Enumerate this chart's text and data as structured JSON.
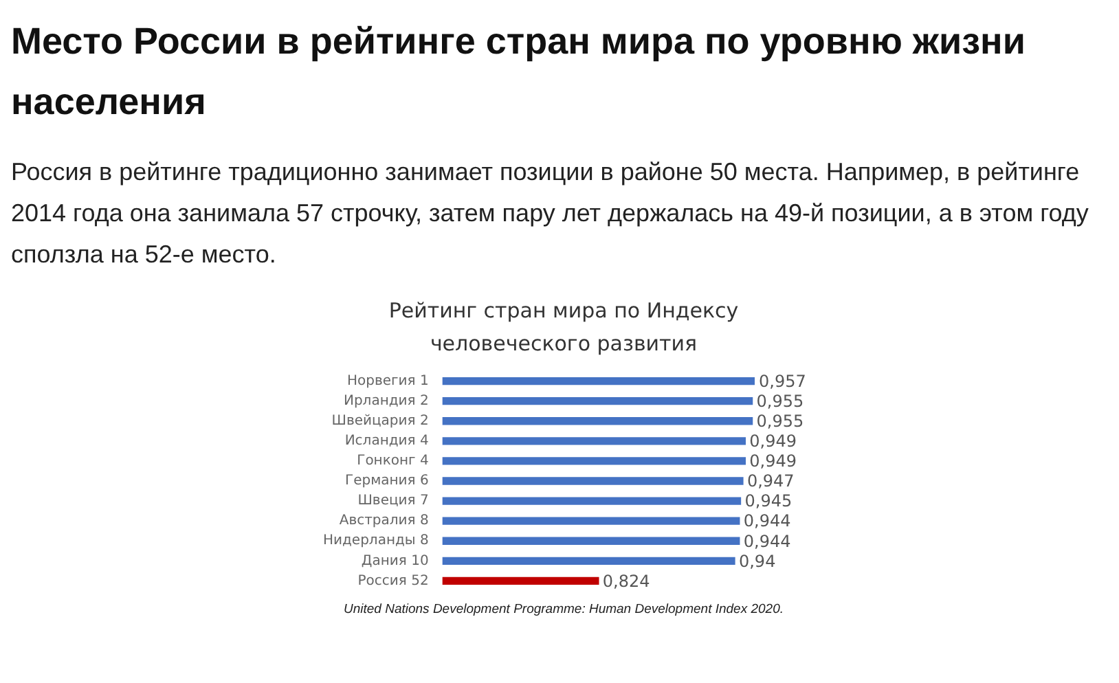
{
  "chart_data": {
    "type": "bar",
    "orientation": "horizontal",
    "title": "Место России в рейтинге стран мира по уровню жизни населения",
    "subtitle": "Россия в рейтинге традиционно занимает позиции в районе 50 места. Например, в рейтинге 2014 года она занимала 57 строчку, затем пару лет держалась на 49-й позиции, а в этом году сползла на 52-е место.",
    "annotations": [
      "Рейтинг стран мира по Индексу человеческого развития",
      "United Nations Development Programme: Human Development Index 2020."
    ],
    "categories": [
      "Норвегия 1",
      "Ирландия 2",
      "Швейцария 2",
      "Исландия 4",
      "Гонконг 4",
      "Германия 6",
      "Швеция 7",
      "Австралия 8",
      "Нидерланды 8",
      "Дания 10",
      "Россия 52"
    ],
    "values": [
      0.957,
      0.955,
      0.955,
      0.949,
      0.949,
      0.947,
      0.945,
      0.944,
      0.944,
      0.94,
      0.824
    ],
    "value_labels": [
      "0,957",
      "0,955",
      "0,955",
      "0,949",
      "0,949",
      "0,947",
      "0,945",
      "0,944",
      "0,944",
      "0,94",
      "0,824"
    ],
    "colors": [
      "#4472c4",
      "#4472c4",
      "#4472c4",
      "#4472c4",
      "#4472c4",
      "#4472c4",
      "#4472c4",
      "#4472c4",
      "#4472c4",
      "#4472c4",
      "#c00000"
    ],
    "tick_labels": "y",
    "legend": false
  }
}
